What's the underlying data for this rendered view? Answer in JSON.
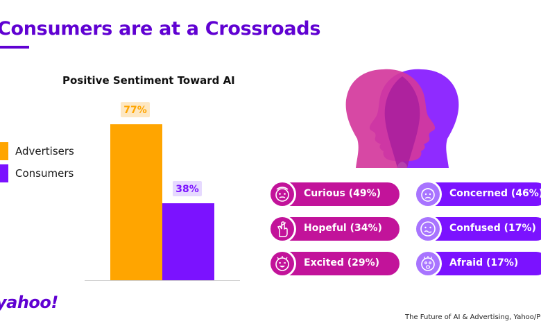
{
  "header": {
    "title": "Consumers are at a Crossroads"
  },
  "colors": {
    "advertisers": "#ffa500",
    "consumers": "#7b12ff",
    "magenta": "#c2139a",
    "purple": "#7b12ff",
    "accent": "#6001d2"
  },
  "chart_data": {
    "type": "bar",
    "title": "Positive Sentiment Toward AI",
    "categories": [
      "Advertisers",
      "Consumers"
    ],
    "values": [
      77,
      38
    ],
    "value_labels": [
      "77%",
      "38%"
    ],
    "unit": "%",
    "ylim": [
      0,
      100
    ],
    "grid": false,
    "legend": {
      "placement": "left",
      "entries": [
        "Advertisers",
        "Consumers"
      ]
    }
  },
  "sentiments": {
    "left": [
      {
        "label": "Curious (49%)",
        "icon": "curious-face-icon"
      },
      {
        "label": "Hopeful (34%)",
        "icon": "crossed-fingers-icon"
      },
      {
        "label": "Excited (29%)",
        "icon": "excited-face-icon"
      }
    ],
    "right": [
      {
        "label": "Concerned (46%)",
        "icon": "concerned-face-icon"
      },
      {
        "label": "Confused (17%)",
        "icon": "confused-face-icon"
      },
      {
        "label": "Afraid (17%)",
        "icon": "afraid-face-icon"
      }
    ]
  },
  "footer": {
    "brand": "yahoo!",
    "source": "The Future of AI & Advertising, Yahoo/Publicis"
  }
}
